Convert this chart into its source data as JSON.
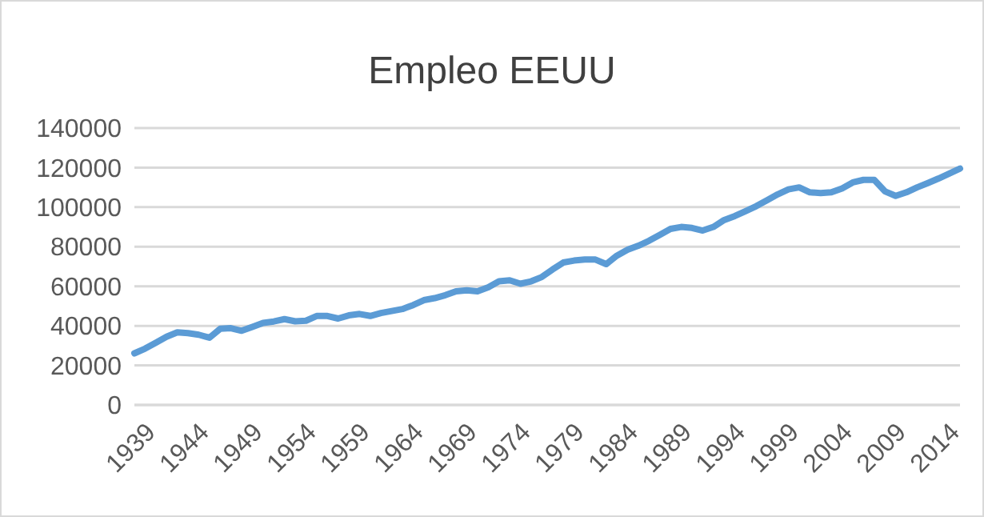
{
  "chart_data": {
    "type": "line",
    "title": "Empleo EEUU",
    "x": [
      1939,
      1940,
      1941,
      1942,
      1943,
      1944,
      1945,
      1946,
      1947,
      1948,
      1949,
      1950,
      1951,
      1952,
      1953,
      1954,
      1955,
      1956,
      1957,
      1958,
      1959,
      1960,
      1961,
      1962,
      1963,
      1964,
      1965,
      1966,
      1967,
      1968,
      1969,
      1970,
      1971,
      1972,
      1973,
      1974,
      1975,
      1976,
      1977,
      1978,
      1979,
      1980,
      1981,
      1982,
      1983,
      1984,
      1985,
      1986,
      1987,
      1988,
      1989,
      1990,
      1991,
      1992,
      1993,
      1994,
      1995,
      1996,
      1997,
      1998,
      1999,
      2000,
      2001,
      2002,
      2003,
      2004,
      2005,
      2006,
      2007,
      2008,
      2009,
      2010,
      2011,
      2012,
      2013,
      2014,
      2015,
      2016
    ],
    "series": [
      {
        "color": "#5b9bd5",
        "values": [
          26100,
          28500,
          31500,
          34500,
          36700,
          36300,
          35500,
          34000,
          38500,
          38800,
          37500,
          39500,
          41500,
          42200,
          43400,
          42300,
          42600,
          45000,
          45000,
          43700,
          45300,
          46000,
          45000,
          46500,
          47500,
          48500,
          50500,
          53000,
          54000,
          55500,
          57500,
          58000,
          57500,
          59500,
          62500,
          63000,
          61300,
          62500,
          64700,
          68500,
          72000,
          73000,
          73500,
          73500,
          71200,
          75500,
          78500,
          80500,
          83000,
          86000,
          89000,
          90000,
          89500,
          88200,
          90000,
          93500,
          95500,
          98000,
          100500,
          103500,
          106500,
          109000,
          110000,
          107500,
          107100,
          107500,
          109500,
          112500,
          113800,
          113800,
          108000,
          105700,
          107500,
          110000,
          112200,
          114500,
          117000,
          119500
        ]
      }
    ],
    "xlim": [
      1939,
      2016
    ],
    "xticks": [
      1939,
      1944,
      1949,
      1954,
      1959,
      1964,
      1969,
      1974,
      1979,
      1984,
      1989,
      1994,
      1999,
      2004,
      2009,
      2014
    ],
    "ylim": [
      0,
      140000
    ],
    "yticks": [
      0,
      20000,
      40000,
      60000,
      80000,
      100000,
      120000,
      140000
    ],
    "grid": "y",
    "marker": "none",
    "line_style": "solid"
  }
}
